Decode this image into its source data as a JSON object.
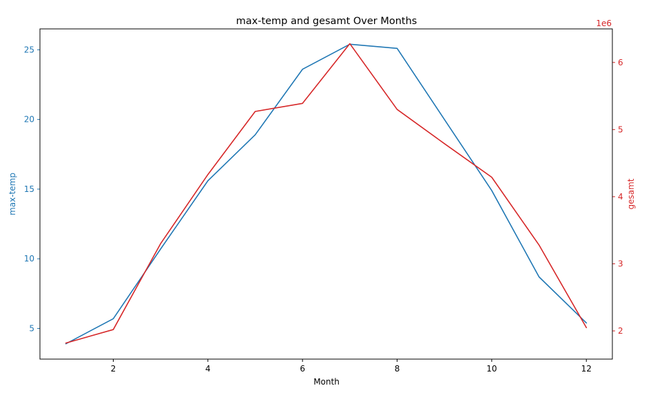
{
  "chart_data": {
    "type": "line",
    "title": "max-temp and gesamt Over Months",
    "xlabel": "Month",
    "x": [
      1,
      2,
      3,
      4,
      5,
      6,
      7,
      8,
      9,
      10,
      11,
      12
    ],
    "xlim": [
      0.45,
      12.55
    ],
    "xticks": [
      "2",
      "4",
      "6",
      "8",
      "10",
      "12"
    ],
    "grid": false,
    "series": [
      {
        "name": "max-temp",
        "axis": "left",
        "color": "#1f77b4",
        "values": [
          3.9,
          5.7,
          10.7,
          15.6,
          18.9,
          23.6,
          25.4,
          25.1,
          20.0,
          14.9,
          8.7,
          5.4
        ]
      },
      {
        "name": "gesamt",
        "axis": "right",
        "color": "#d62728",
        "values": [
          1820000,
          2020000,
          3300000,
          4330000,
          5270000,
          5390000,
          6280000,
          5300000,
          4790000,
          4290000,
          3280000,
          2050000
        ]
      }
    ],
    "left_axis": {
      "label": "max-temp",
      "color": "#1f77b4",
      "ylim": [
        2.8,
        26.5
      ],
      "ticks": [
        "5",
        "10",
        "15",
        "20",
        "25"
      ]
    },
    "right_axis": {
      "label": "gesamt",
      "color": "#d62728",
      "ylim": [
        1580000,
        6500000
      ],
      "ticks": [
        "2",
        "3",
        "4",
        "5",
        "6"
      ],
      "tick_values": [
        2000000,
        3000000,
        4000000,
        5000000,
        6000000
      ],
      "offset_text": "1e6"
    }
  }
}
